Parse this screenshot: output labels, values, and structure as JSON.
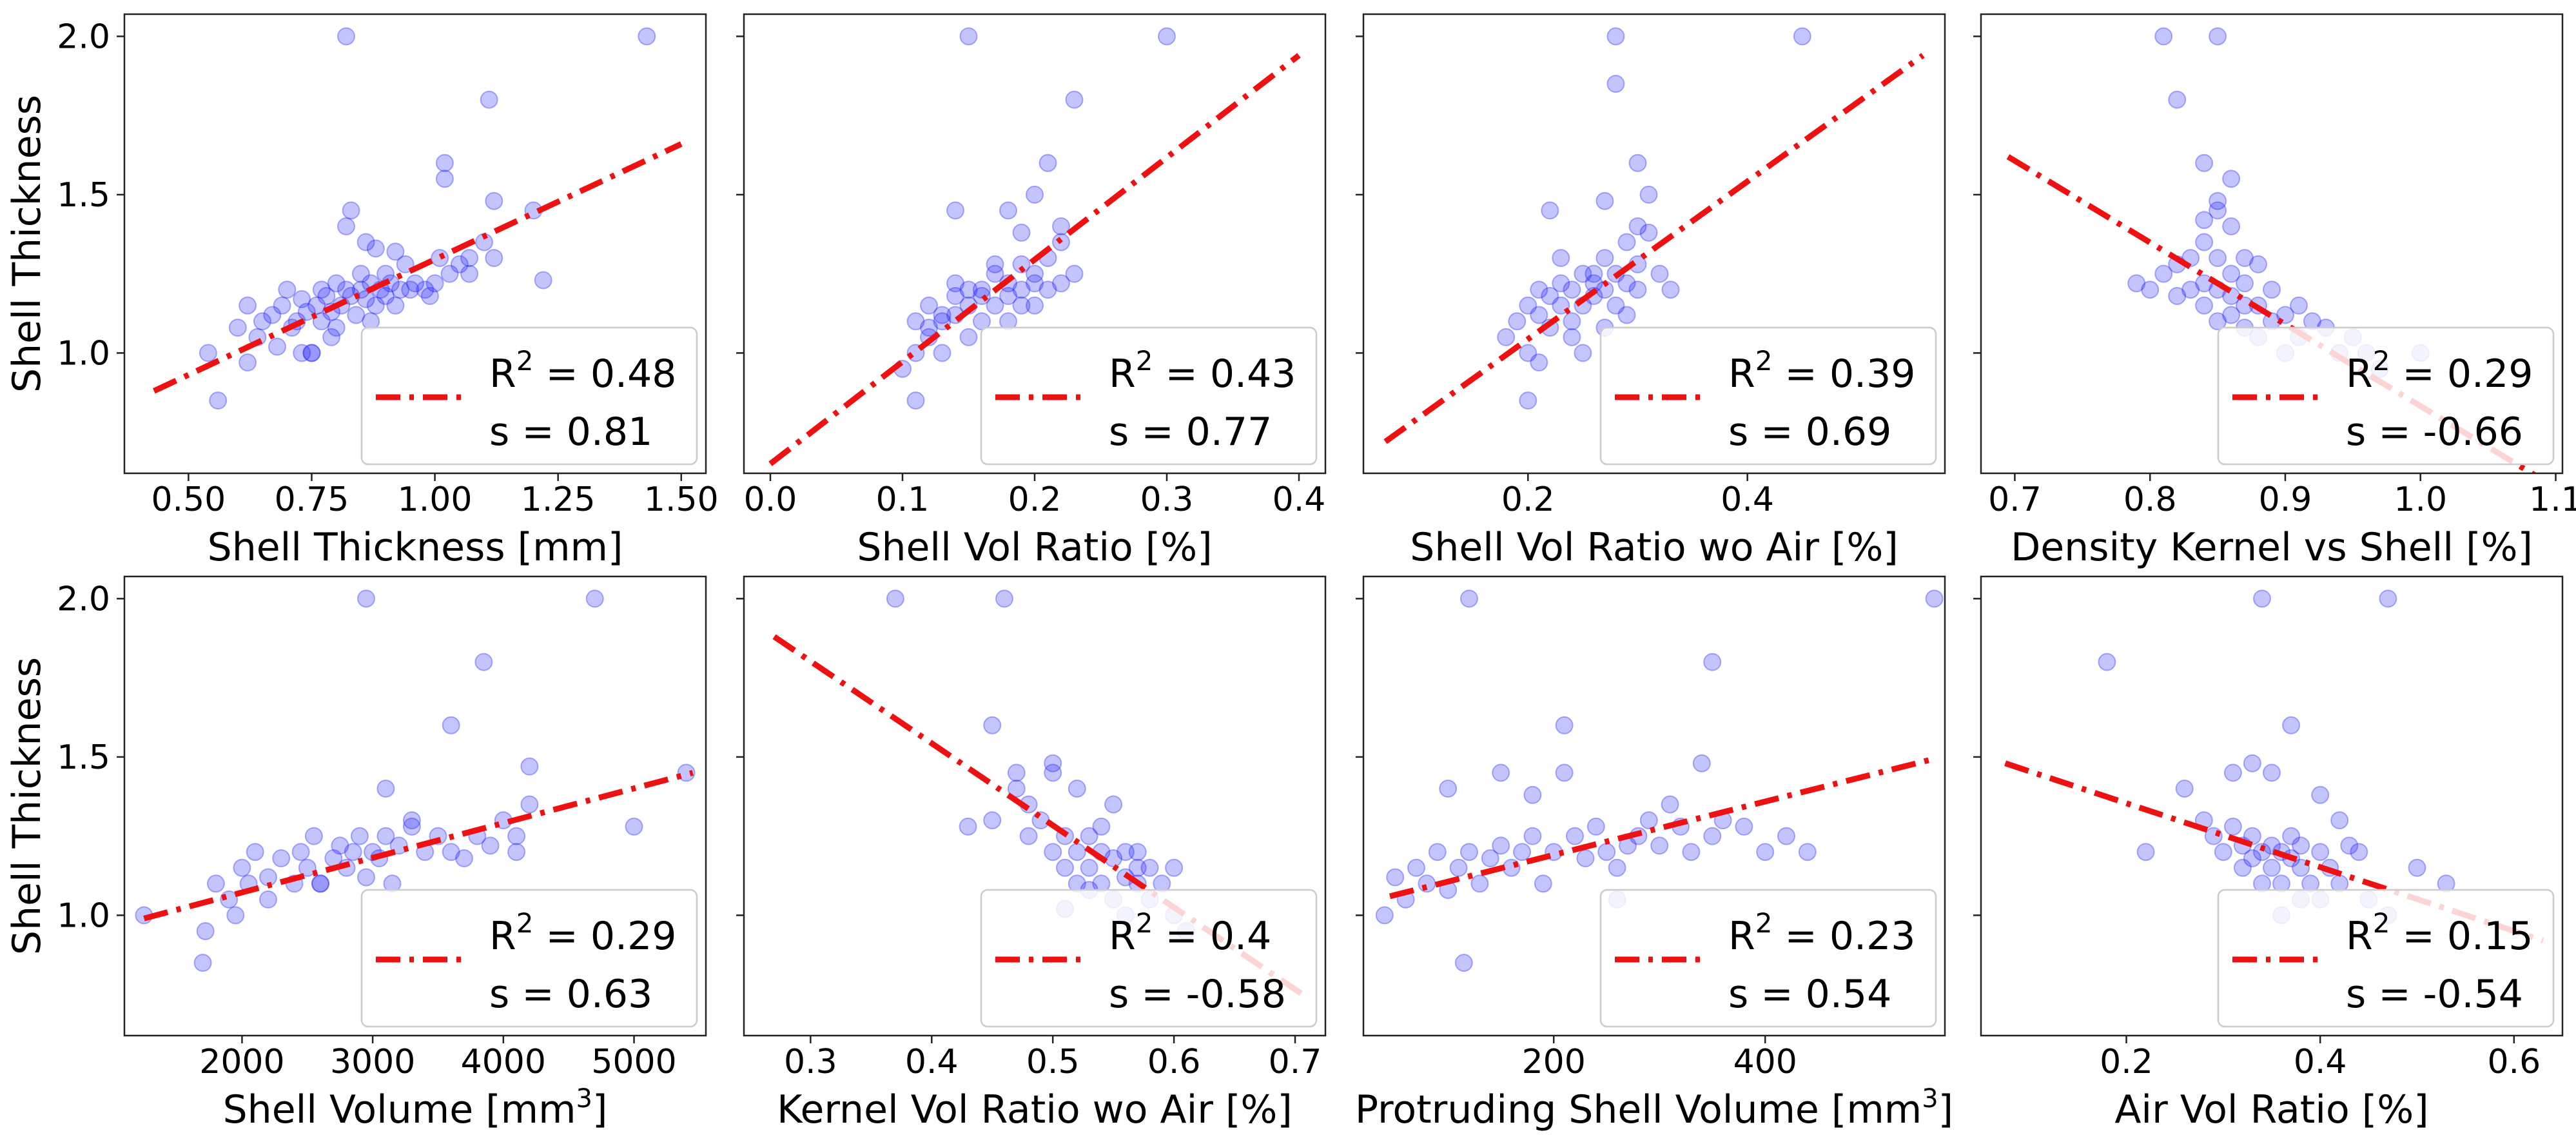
{
  "figure": {
    "ylabel": "Shell Thickness"
  },
  "chart_data": [
    {
      "type": "scatter",
      "xlabel": "Shell Thickness [mm]",
      "ylabel": "Shell Thickness",
      "xlim": [
        0.37,
        1.55
      ],
      "ylim": [
        0.62,
        2.07
      ],
      "xticks": [
        "0.50",
        "0.75",
        "1.00",
        "1.25",
        "1.50"
      ],
      "yticks": [
        "1.0",
        "1.5",
        "2.0"
      ],
      "fit": {
        "x": [
          0.43,
          1.5
        ],
        "y": [
          0.88,
          1.66
        ]
      },
      "legend": {
        "r2": "0.48",
        "s": "0.81",
        "placement": "lower-right"
      },
      "points": {
        "x": [
          0.54,
          0.56,
          0.6,
          0.62,
          0.64,
          0.65,
          0.67,
          0.68,
          0.69,
          0.7,
          0.71,
          0.72,
          0.73,
          0.74,
          0.75,
          0.76,
          0.77,
          0.77,
          0.78,
          0.79,
          0.8,
          0.8,
          0.81,
          0.82,
          0.83,
          0.84,
          0.85,
          0.85,
          0.86,
          0.87,
          0.87,
          0.88,
          0.89,
          0.9,
          0.9,
          0.91,
          0.92,
          0.93,
          0.94,
          0.95,
          0.96,
          0.98,
          1,
          1.01,
          1.03,
          1.05,
          1.07,
          1.1,
          1.12,
          1.2,
          1.22,
          0.82,
          1.43,
          1.11,
          1.02,
          1.02,
          0.83,
          1.12,
          0.73,
          0.75,
          0.62,
          0.88,
          0.86,
          0.92,
          0.79,
          0.82,
          0.99,
          1.07
        ],
        "y": [
          1,
          0.85,
          1.08,
          1.15,
          1.05,
          1.1,
          1.12,
          1.02,
          1.15,
          1.2,
          1.08,
          1.1,
          1.17,
          1.13,
          1.0,
          1.15,
          1.1,
          1.2,
          1.18,
          1.13,
          1.22,
          1.08,
          1.15,
          1.2,
          1.18,
          1.12,
          1.2,
          1.25,
          1.17,
          1.22,
          1.1,
          1.15,
          1.2,
          1.18,
          1.25,
          1.22,
          1.15,
          1.2,
          1.28,
          1.2,
          1.22,
          1.2,
          1.22,
          1.3,
          1.25,
          1.28,
          1.25,
          1.35,
          1.3,
          1.45,
          1.23,
          2,
          2,
          1.8,
          1.6,
          1.55,
          1.45,
          1.48,
          1.0,
          1.0,
          0.97,
          1.33,
          1.35,
          1.32,
          1.05,
          1.4,
          1.18,
          1.3
        ]
      }
    },
    {
      "type": "scatter",
      "xlabel": "Shell Vol Ratio [%]",
      "ylabel": "",
      "xlim": [
        -0.02,
        0.42
      ],
      "ylim": [
        0.62,
        2.07
      ],
      "xticks": [
        "0.0",
        "0.1",
        "0.2",
        "0.3",
        "0.4"
      ],
      "yticks": [],
      "fit": {
        "x": [
          0.0,
          0.4
        ],
        "y": [
          0.65,
          1.94
        ]
      },
      "legend": {
        "r2": "0.43",
        "s": "0.77",
        "placement": "lower-right"
      },
      "points": {
        "x": [
          0.1,
          0.11,
          0.11,
          0.12,
          0.12,
          0.13,
          0.13,
          0.14,
          0.14,
          0.15,
          0.15,
          0.15,
          0.16,
          0.16,
          0.17,
          0.17,
          0.18,
          0.18,
          0.18,
          0.19,
          0.19,
          0.2,
          0.2,
          0.21,
          0.21,
          0.22,
          0.22,
          0.23,
          0.14,
          0.18,
          0.2,
          0.21,
          0.23,
          0.19,
          0.15,
          0.3,
          0.22,
          0.2,
          0.13,
          0.16,
          0.12,
          0.11,
          0.14,
          0.17,
          0.19
        ],
        "y": [
          0.95,
          1.0,
          1.1,
          1.05,
          1.15,
          1.0,
          1.1,
          1.12,
          1.18,
          1.05,
          1.15,
          1.2,
          1.1,
          1.2,
          1.15,
          1.25,
          1.18,
          1.22,
          1.1,
          1.2,
          1.28,
          1.15,
          1.25,
          1.2,
          1.3,
          1.22,
          1.35,
          1.25,
          1.45,
          1.45,
          1.5,
          1.6,
          1.8,
          1.38,
          2.0,
          2.0,
          1.4,
          1.22,
          1.12,
          1.18,
          1.08,
          0.85,
          1.22,
          1.28,
          1.15
        ]
      }
    },
    {
      "type": "scatter",
      "xlabel": "Shell Vol Ratio wo Air [%]",
      "ylabel": "",
      "xlim": [
        0.05,
        0.58
      ],
      "ylim": [
        0.62,
        2.07
      ],
      "xticks": [
        "0.2",
        "0.4"
      ],
      "yticks": [],
      "fit": {
        "x": [
          0.07,
          0.56
        ],
        "y": [
          0.72,
          1.94
        ]
      },
      "legend": {
        "r2": "0.39",
        "s": "0.69",
        "placement": "lower-right"
      },
      "points": {
        "x": [
          0.18,
          0.19,
          0.2,
          0.2,
          0.21,
          0.21,
          0.22,
          0.22,
          0.23,
          0.23,
          0.24,
          0.24,
          0.25,
          0.25,
          0.26,
          0.26,
          0.27,
          0.27,
          0.28,
          0.28,
          0.29,
          0.29,
          0.3,
          0.3,
          0.31,
          0.32,
          0.27,
          0.28,
          0.3,
          0.31,
          0.3,
          0.45,
          0.28,
          0.22,
          0.25,
          0.2,
          0.24,
          0.29,
          0.26,
          0.33,
          0.21,
          0.23,
          0.27
        ],
        "y": [
          1.05,
          1.1,
          1.0,
          1.15,
          1.12,
          1.2,
          1.08,
          1.18,
          1.15,
          1.22,
          1.1,
          1.2,
          1.15,
          1.25,
          1.18,
          1.22,
          1.2,
          1.3,
          1.15,
          1.25,
          1.22,
          1.35,
          1.2,
          1.28,
          1.38,
          1.25,
          1.48,
          1.85,
          1.6,
          1.5,
          1.4,
          2.0,
          2.0,
          1.45,
          1.0,
          0.85,
          1.05,
          1.12,
          1.25,
          1.2,
          0.97,
          1.3,
          1.08
        ]
      }
    },
    {
      "type": "scatter",
      "xlabel": "Density Kernel vs Shell [%]",
      "ylabel": "",
      "xlim": [
        0.675,
        1.105
      ],
      "ylim": [
        0.62,
        2.07
      ],
      "xticks": [
        "0.7",
        "0.8",
        "0.9",
        "1.0",
        "1.1"
      ],
      "yticks": [],
      "fit": {
        "x": [
          0.695,
          1.09
        ],
        "y": [
          1.62,
          0.6
        ]
      },
      "legend": {
        "r2": "0.29",
        "s": "-0.66",
        "placement": "lower-right"
      },
      "points": {
        "x": [
          0.79,
          0.8,
          0.81,
          0.82,
          0.82,
          0.83,
          0.83,
          0.84,
          0.84,
          0.84,
          0.85,
          0.85,
          0.85,
          0.86,
          0.86,
          0.86,
          0.87,
          0.87,
          0.87,
          0.88,
          0.88,
          0.89,
          0.89,
          0.9,
          0.9,
          0.91,
          0.91,
          0.92,
          0.93,
          0.94,
          0.95,
          0.96,
          0.97,
          1.0,
          0.81,
          0.82,
          0.85,
          0.84,
          0.85,
          0.85,
          0.86,
          0.84,
          0.86,
          0.87,
          0.88
        ],
        "y": [
          1.22,
          1.2,
          1.25,
          1.18,
          1.28,
          1.2,
          1.3,
          1.15,
          1.22,
          1.35,
          1.1,
          1.2,
          1.3,
          1.12,
          1.18,
          1.25,
          1.08,
          1.15,
          1.22,
          1.05,
          1.15,
          1.1,
          1.2,
          1.0,
          1.12,
          1.05,
          1.15,
          1.1,
          1.08,
          1.0,
          1.05,
          1.0,
          0.95,
          1.0,
          2.0,
          1.8,
          2.0,
          1.6,
          1.48,
          1.45,
          1.4,
          1.42,
          1.55,
          1.3,
          1.28
        ]
      }
    },
    {
      "type": "scatter",
      "xlabel": "Shell Volume [mm³]",
      "ylabel": "Shell Thickness",
      "xlim": [
        1100,
        5550
      ],
      "ylim": [
        0.62,
        2.07
      ],
      "xticks": [
        "2000",
        "3000",
        "4000",
        "5000"
      ],
      "yticks": [
        "1.0",
        "1.5",
        "2.0"
      ],
      "fit": {
        "x": [
          1250,
          5450
        ],
        "y": [
          0.99,
          1.45
        ]
      },
      "legend": {
        "r2": "0.29",
        "s": "0.63",
        "placement": "lower-right"
      },
      "points": {
        "x": [
          1250,
          1700,
          1720,
          1800,
          1900,
          1950,
          2000,
          2050,
          2100,
          2200,
          2300,
          2400,
          2450,
          2500,
          2550,
          2600,
          2700,
          2750,
          2800,
          2850,
          2900,
          2950,
          3000,
          3050,
          3100,
          3150,
          3200,
          3300,
          3400,
          3500,
          3600,
          3700,
          3800,
          3900,
          4000,
          4100,
          4200,
          4700,
          5400,
          5000,
          2950,
          3850,
          4200,
          3600,
          2600,
          2200,
          3100,
          3300,
          4100
        ],
        "y": [
          1.0,
          0.85,
          0.95,
          1.1,
          1.05,
          1.0,
          1.15,
          1.1,
          1.2,
          1.12,
          1.18,
          1.1,
          1.2,
          1.15,
          1.25,
          1.1,
          1.18,
          1.22,
          1.15,
          1.2,
          1.25,
          1.12,
          1.2,
          1.18,
          1.25,
          1.1,
          1.22,
          1.3,
          1.2,
          1.25,
          1.2,
          1.18,
          1.25,
          1.22,
          1.3,
          1.25,
          1.35,
          2.0,
          1.45,
          1.28,
          2.0,
          1.8,
          1.47,
          1.6,
          1.1,
          1.05,
          1.4,
          1.28,
          1.2
        ]
      }
    },
    {
      "type": "scatter",
      "xlabel": "Kernel Vol Ratio wo Air [%]",
      "ylabel": "",
      "xlim": [
        0.245,
        0.725
      ],
      "ylim": [
        0.62,
        2.07
      ],
      "xticks": [
        "0.3",
        "0.4",
        "0.5",
        "0.6",
        "0.7"
      ],
      "yticks": [],
      "fit": {
        "x": [
          0.27,
          0.71
        ],
        "y": [
          1.88,
          0.74
        ]
      },
      "legend": {
        "r2": "0.4",
        "s": "-0.58",
        "placement": "lower-right"
      },
      "points": {
        "x": [
          0.37,
          0.43,
          0.45,
          0.46,
          0.47,
          0.48,
          0.49,
          0.5,
          0.5,
          0.51,
          0.51,
          0.52,
          0.52,
          0.53,
          0.53,
          0.54,
          0.54,
          0.55,
          0.55,
          0.56,
          0.56,
          0.57,
          0.57,
          0.58,
          0.58,
          0.59,
          0.6,
          0.6,
          0.61,
          0.5,
          0.47,
          0.45,
          0.52,
          0.55,
          0.48,
          0.54,
          0.57,
          0.51,
          0.53,
          0.56
        ],
        "y": [
          2.0,
          1.28,
          1.6,
          2.0,
          1.4,
          1.35,
          1.3,
          1.45,
          1.2,
          1.25,
          1.15,
          1.2,
          1.1,
          1.25,
          1.15,
          1.2,
          1.1,
          1.18,
          1.05,
          1.2,
          1.12,
          1.15,
          1.1,
          1.15,
          1.05,
          1.1,
          1.15,
          1.0,
          0.95,
          1.48,
          1.45,
          1.3,
          1.4,
          1.35,
          1.25,
          1.28,
          1.2,
          1.02,
          1.08,
          1.0
        ]
      }
    },
    {
      "type": "scatter",
      "xlabel": "Protruding Shell Volume [mm³]",
      "ylabel": "",
      "xlim": [
        20,
        570
      ],
      "ylim": [
        0.62,
        2.07
      ],
      "xticks": [
        "200",
        "400"
      ],
      "yticks": [],
      "fit": {
        "x": [
          45,
          555
        ],
        "y": [
          1.06,
          1.49
        ]
      },
      "legend": {
        "r2": "0.23",
        "s": "0.54",
        "placement": "lower-right"
      },
      "points": {
        "x": [
          40,
          50,
          60,
          70,
          80,
          90,
          100,
          110,
          115,
          120,
          130,
          140,
          150,
          160,
          170,
          180,
          190,
          200,
          210,
          220,
          230,
          240,
          250,
          260,
          270,
          280,
          290,
          300,
          310,
          320,
          330,
          340,
          350,
          360,
          380,
          400,
          420,
          440,
          120,
          210,
          150,
          560,
          350,
          180,
          100,
          260
        ],
        "y": [
          1.0,
          1.12,
          1.05,
          1.15,
          1.1,
          1.2,
          1.08,
          1.15,
          0.85,
          1.2,
          1.1,
          1.18,
          1.22,
          1.15,
          1.2,
          1.25,
          1.1,
          1.2,
          1.6,
          1.25,
          1.18,
          1.28,
          1.2,
          1.15,
          1.22,
          1.25,
          1.3,
          1.22,
          1.35,
          1.28,
          1.2,
          1.48,
          1.25,
          1.3,
          1.28,
          1.2,
          1.25,
          1.2,
          2.0,
          1.45,
          1.45,
          2.0,
          1.8,
          1.38,
          1.4,
          1.05
        ]
      }
    },
    {
      "type": "scatter",
      "xlabel": "Air Vol Ratio [%]",
      "ylabel": "",
      "xlim": [
        0.05,
        0.65
      ],
      "ylim": [
        0.62,
        2.07
      ],
      "xticks": [
        "0.2",
        "0.4",
        "0.6"
      ],
      "yticks": [],
      "fit": {
        "x": [
          0.075,
          0.63
        ],
        "y": [
          1.48,
          0.92
        ]
      },
      "legend": {
        "r2": "0.15",
        "s": "-0.54",
        "placement": "lower-right"
      },
      "points": {
        "x": [
          0.18,
          0.22,
          0.26,
          0.28,
          0.29,
          0.3,
          0.31,
          0.32,
          0.32,
          0.33,
          0.33,
          0.34,
          0.34,
          0.35,
          0.35,
          0.36,
          0.36,
          0.37,
          0.37,
          0.38,
          0.38,
          0.39,
          0.4,
          0.4,
          0.41,
          0.42,
          0.43,
          0.44,
          0.45,
          0.47,
          0.5,
          0.53,
          0.34,
          0.37,
          0.47,
          0.35,
          0.33,
          0.31,
          0.4,
          0.42,
          0.36,
          0.38
        ],
        "y": [
          1.8,
          1.2,
          1.4,
          1.3,
          1.25,
          1.2,
          1.28,
          1.22,
          1.15,
          1.25,
          1.18,
          1.2,
          1.1,
          1.22,
          1.15,
          1.2,
          1.1,
          1.18,
          1.25,
          1.15,
          1.22,
          1.1,
          1.2,
          1.05,
          1.15,
          1.1,
          1.22,
          1.2,
          1.05,
          1.0,
          1.15,
          1.1,
          2.0,
          1.6,
          2.0,
          1.45,
          1.48,
          1.45,
          1.38,
          1.3,
          1.0,
          1.05
        ]
      }
    }
  ]
}
